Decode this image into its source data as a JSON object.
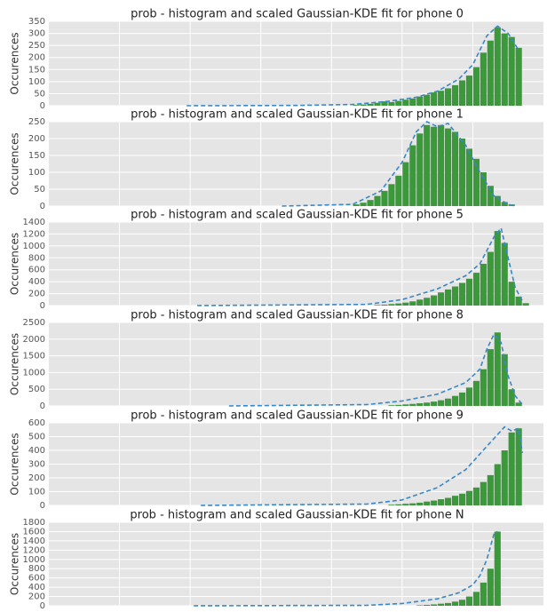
{
  "chart_data": [
    {
      "type": "histogram",
      "title": "prob - histogram and scaled Gaussian-KDE fit for phone 0",
      "ylabel": "Occurences",
      "bins": [
        4.3,
        4.4,
        4.5,
        4.6,
        4.7,
        4.8,
        4.9,
        5.0,
        5.1,
        5.2,
        5.3,
        5.4,
        5.5,
        5.6,
        5.7,
        5.8,
        5.9,
        6.0,
        6.1,
        6.2,
        6.3,
        6.4,
        6.5,
        6.6,
        6.7
      ],
      "values": [
        3,
        5,
        8,
        12,
        18,
        15,
        20,
        25,
        30,
        38,
        45,
        55,
        62,
        72,
        85,
        105,
        125,
        160,
        220,
        270,
        325,
        300,
        285,
        240
      ],
      "color": "#3a9a3a",
      "kde": {
        "x": [
          1.95,
          3.5,
          4.3,
          4.8,
          5.2,
          5.5,
          5.8,
          6.0,
          6.2,
          6.35,
          6.5,
          6.65
        ],
        "values": [
          0,
          1,
          5,
          18,
          35,
          60,
          110,
          170,
          290,
          330,
          300,
          230
        ],
        "color": "#3a87c8"
      },
      "xlim": [
        0,
        7
      ],
      "xgrid": [
        1,
        2,
        3,
        4,
        5,
        6
      ],
      "ylim": [
        0,
        350
      ],
      "yticks": [
        0,
        50,
        100,
        150,
        200,
        250,
        300,
        350
      ],
      "grid": true
    },
    {
      "type": "histogram",
      "title": "prob - histogram and scaled Gaussian-KDE fit for phone 1",
      "ylabel": "Occurences",
      "bins": [
        4.3,
        4.4,
        4.5,
        4.6,
        4.7,
        4.8,
        4.9,
        5.0,
        5.1,
        5.2,
        5.3,
        5.4,
        5.5,
        5.6,
        5.7,
        5.8,
        5.9,
        6.0,
        6.1,
        6.2,
        6.3,
        6.4,
        6.5,
        6.6
      ],
      "values": [
        5,
        10,
        18,
        30,
        45,
        65,
        90,
        130,
        180,
        215,
        240,
        235,
        240,
        230,
        220,
        200,
        170,
        140,
        100,
        60,
        30,
        12,
        5
      ],
      "color": "#3a9a3a",
      "kde": {
        "x": [
          3.3,
          4.3,
          4.7,
          5.0,
          5.2,
          5.35,
          5.5,
          5.65,
          5.9,
          6.1,
          6.3,
          6.5,
          6.6
        ],
        "values": [
          0,
          5,
          45,
          130,
          220,
          250,
          235,
          245,
          180,
          100,
          30,
          5,
          0
        ],
        "color": "#3a87c8"
      },
      "xlim": [
        0,
        7
      ],
      "xgrid": [
        1,
        2,
        3,
        4,
        5,
        6
      ],
      "ylim": [
        0,
        250
      ],
      "yticks": [
        0,
        50,
        100,
        150,
        200,
        250
      ],
      "grid": true
    },
    {
      "type": "histogram",
      "title": "prob - histogram and scaled Gaussian-KDE fit for phone 5",
      "ylabel": "Occurences",
      "bins": [
        4.6,
        4.7,
        4.8,
        4.9,
        5.0,
        5.1,
        5.2,
        5.3,
        5.4,
        5.5,
        5.6,
        5.7,
        5.8,
        5.9,
        6.0,
        6.1,
        6.2,
        6.3,
        6.4,
        6.5,
        6.6,
        6.7,
        6.8
      ],
      "values": [
        10,
        15,
        25,
        35,
        50,
        70,
        100,
        130,
        170,
        220,
        270,
        320,
        380,
        450,
        550,
        700,
        900,
        1250,
        1050,
        400,
        150,
        40
      ],
      "color": "#3a9a3a",
      "kde": {
        "x": [
          2.1,
          4.5,
          5.0,
          5.5,
          5.9,
          6.1,
          6.3,
          6.4,
          6.5,
          6.6,
          6.7
        ],
        "values": [
          0,
          20,
          100,
          280,
          500,
          700,
          1150,
          1300,
          800,
          300,
          80
        ],
        "color": "#3a87c8"
      },
      "xlim": [
        0,
        7
      ],
      "xgrid": [
        1,
        2,
        3,
        4,
        5,
        6
      ],
      "ylim": [
        0,
        1400
      ],
      "yticks": [
        0,
        200,
        400,
        600,
        800,
        1000,
        1200,
        1400
      ],
      "grid": true
    },
    {
      "type": "histogram",
      "title": "prob - histogram and scaled Gaussian-KDE fit for phone 8",
      "ylabel": "Occurences",
      "bins": [
        4.8,
        4.9,
        5.0,
        5.1,
        5.2,
        5.3,
        5.4,
        5.5,
        5.6,
        5.7,
        5.8,
        5.9,
        6.0,
        6.1,
        6.2,
        6.3,
        6.4,
        6.5,
        6.6,
        6.7
      ],
      "values": [
        20,
        30,
        45,
        60,
        80,
        100,
        130,
        170,
        220,
        300,
        400,
        550,
        750,
        1100,
        1700,
        2200,
        1550,
        500,
        100
      ],
      "color": "#3a9a3a",
      "kde": {
        "x": [
          2.55,
          4.5,
          5.0,
          5.5,
          5.9,
          6.1,
          6.2,
          6.3,
          6.4,
          6.5,
          6.6,
          6.7
        ],
        "values": [
          0,
          40,
          150,
          350,
          700,
          1100,
          1700,
          2150,
          1900,
          900,
          300,
          50
        ],
        "color": "#3a87c8"
      },
      "xlim": [
        0,
        7
      ],
      "xgrid": [
        1,
        2,
        3,
        4,
        5,
        6
      ],
      "ylim": [
        0,
        2500
      ],
      "yticks": [
        0,
        500,
        1000,
        1500,
        2000,
        2500
      ],
      "grid": true
    },
    {
      "type": "histogram",
      "title": "prob - histogram and scaled Gaussian-KDE fit for phone 9",
      "ylabel": "Occurences",
      "bins": [
        4.8,
        4.9,
        5.0,
        5.1,
        5.2,
        5.3,
        5.4,
        5.5,
        5.6,
        5.7,
        5.8,
        5.9,
        6.0,
        6.1,
        6.2,
        6.3,
        6.4,
        6.5,
        6.6,
        6.7
      ],
      "values": [
        5,
        8,
        12,
        15,
        20,
        28,
        35,
        45,
        55,
        70,
        85,
        105,
        130,
        170,
        220,
        300,
        400,
        530,
        560
      ],
      "color": "#3a9a3a",
      "kde": {
        "x": [
          2.15,
          4.5,
          5.0,
          5.5,
          5.9,
          6.2,
          6.45,
          6.55,
          6.65,
          6.7
        ],
        "values": [
          0,
          10,
          40,
          130,
          260,
          430,
          570,
          540,
          560,
          380
        ],
        "color": "#3a87c8"
      },
      "xlim": [
        0,
        7
      ],
      "xgrid": [
        1,
        2,
        3,
        4,
        5,
        6
      ],
      "ylim": [
        0,
        600
      ],
      "yticks": [
        0,
        100,
        200,
        300,
        400,
        500,
        600
      ],
      "grid": true
    },
    {
      "type": "histogram",
      "title": "prob - histogram and scaled Gaussian-KDE fit for phone N",
      "ylabel": "Occurences",
      "bins": [
        5.2,
        5.3,
        5.4,
        5.5,
        5.6,
        5.7,
        5.8,
        5.9,
        6.0,
        6.1,
        6.2,
        6.3,
        6.4
      ],
      "values": [
        10,
        20,
        30,
        45,
        60,
        90,
        130,
        200,
        300,
        500,
        800,
        1600
      ],
      "color": "#3a9a3a",
      "kde": {
        "x": [
          2.05,
          4.5,
          5.0,
          5.5,
          5.8,
          6.0,
          6.1,
          6.2,
          6.3,
          6.35
        ],
        "values": [
          0,
          10,
          50,
          150,
          280,
          450,
          650,
          1000,
          1550,
          1600
        ],
        "color": "#3a87c8"
      },
      "xlim": [
        0,
        7
      ],
      "xgrid": [
        1,
        2,
        3,
        4,
        5,
        6
      ],
      "ylim": [
        0,
        1800
      ],
      "yticks": [
        0,
        200,
        400,
        600,
        800,
        1000,
        1200,
        1400,
        1600,
        1800
      ],
      "grid": true
    }
  ]
}
